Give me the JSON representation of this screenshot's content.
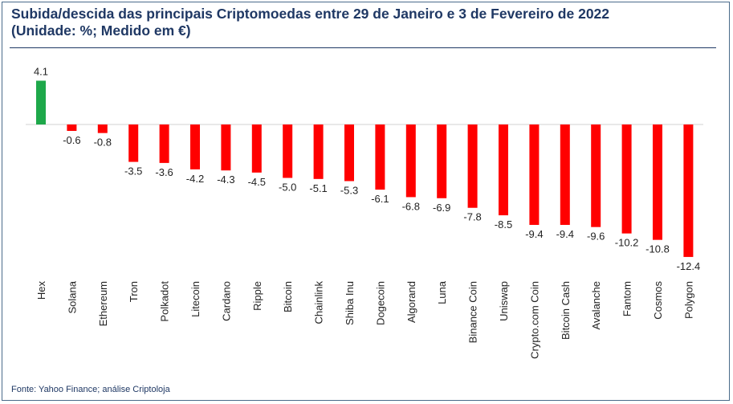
{
  "title_line1": "Subida/descida das principais Criptomoedas entre 29 de Janeiro e 3 de Fevereiro de 2022",
  "title_line2": "(Unidade: %; Medido em €)",
  "source": "Fonte: Yahoo Finance; análise Criptoloja",
  "colors": {
    "positive": "#1ea84a",
    "negative": "#ff0000",
    "title": "#1f3864",
    "zero_line": "#d0d0d0"
  },
  "chart_data": {
    "type": "bar",
    "title": "Subida/descida das principais Criptomoedas entre 29 de Janeiro e 3 de Fevereiro de 2022 (Unidade: %; Medido em €)",
    "xlabel": "",
    "ylabel": "",
    "grid": false,
    "legend": "none",
    "categories": [
      "Hex",
      "Solana",
      "Ethereum",
      "Tron",
      "Polkadot",
      "Litecoin",
      "Cardano",
      "Ripple",
      "Bitcoin",
      "Chainlink",
      "Shiba Inu",
      "Dogecoin",
      "Algorand",
      "Luna",
      "Binance Coin",
      "Uniswap",
      "Crypto.com Coin",
      "Bitcoin Cash",
      "Avalanche",
      "Fantom",
      "Cosmos",
      "Polygon"
    ],
    "values": [
      4.1,
      -0.6,
      -0.8,
      -3.5,
      -3.6,
      -4.2,
      -4.3,
      -4.5,
      -5.0,
      -5.1,
      -5.3,
      -6.1,
      -6.8,
      -6.9,
      -7.8,
      -8.5,
      -9.4,
      -9.4,
      -9.6,
      -10.2,
      -10.8,
      -12.4
    ],
    "value_labels": [
      "4.1",
      "-0.6",
      "-0.8",
      "-3.5",
      "-3.6",
      "-4.2",
      "-4.3",
      "-4.5",
      "-5.0",
      "-5.1",
      "-5.3",
      "-6.1",
      "-6.8",
      "-6.9",
      "-7.8",
      "-8.5",
      "-9.4",
      "-9.4",
      "-9.6",
      "-10.2",
      "-10.8",
      "-12.4"
    ]
  }
}
